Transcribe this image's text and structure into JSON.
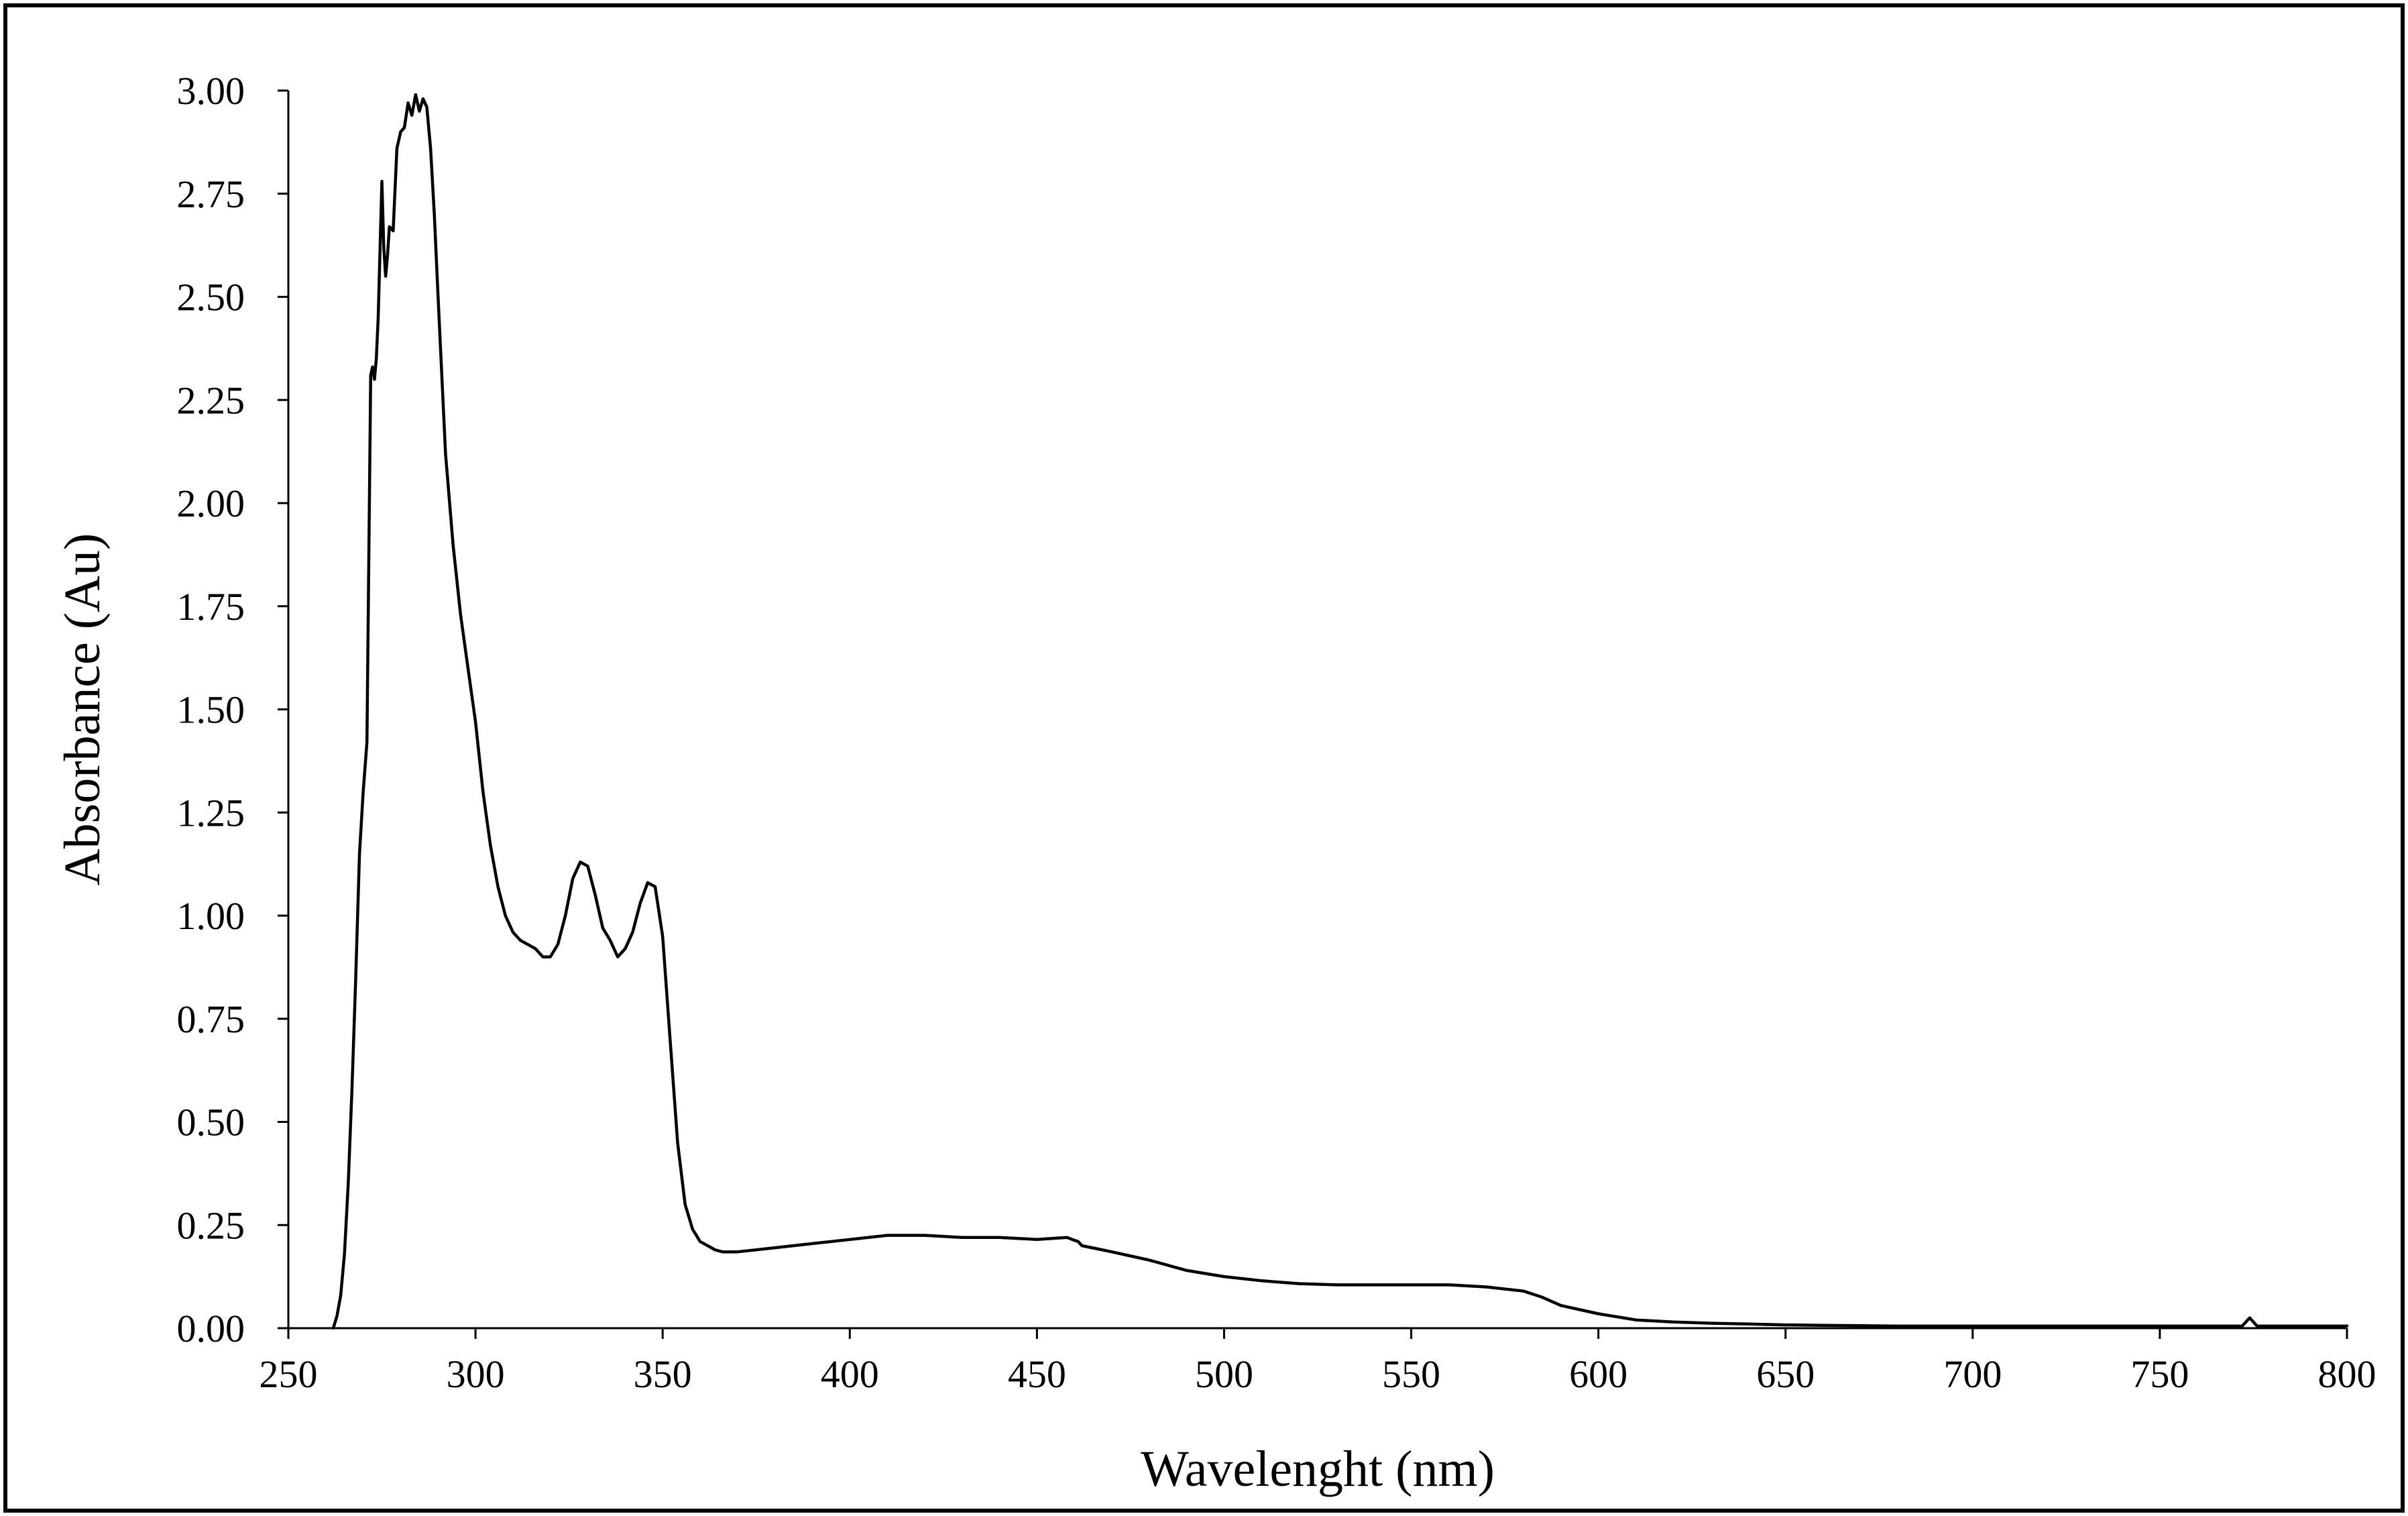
{
  "chart_data": {
    "type": "line",
    "title": "",
    "xlabel": "Wavelenght (nm)",
    "ylabel": "Absorbance (Au)",
    "xlim": [
      250,
      800
    ],
    "ylim": [
      0,
      3
    ],
    "x_ticks": [
      "250",
      "300",
      "350",
      "400",
      "450",
      "500",
      "550",
      "600",
      "650",
      "700",
      "750",
      "800"
    ],
    "y_ticks": [
      "0.00",
      "0.25",
      "0.50",
      "0.75",
      "1.00",
      "1.25",
      "1.50",
      "1.75",
      "2.00",
      "2.25",
      "2.50",
      "2.75",
      "3.00"
    ],
    "grid": false,
    "legend": "none",
    "line_color": "#000000",
    "series": [
      {
        "x": [
          262,
          263,
          264,
          265,
          266,
          267,
          268,
          269,
          270,
          271,
          272,
          272.5,
          273,
          273.5,
          274,
          275,
          275.5,
          276,
          276.5,
          277,
          278,
          279,
          280,
          281,
          282,
          283,
          284,
          285,
          286,
          287,
          288,
          289,
          290,
          292,
          294,
          296,
          298,
          300,
          302,
          304,
          306,
          308,
          310,
          312,
          314,
          316,
          318,
          320,
          322,
          324,
          326,
          328,
          330,
          332,
          334,
          336,
          338,
          340,
          342,
          344,
          346,
          348,
          350,
          352,
          354,
          356,
          358,
          360,
          362,
          364,
          366,
          368,
          370,
          375,
          380,
          390,
          400,
          410,
          420,
          430,
          440,
          450,
          458,
          460,
          461,
          462,
          470,
          480,
          490,
          500,
          510,
          520,
          530,
          540,
          550,
          560,
          570,
          580,
          585,
          590,
          600,
          610,
          620,
          630,
          640,
          650,
          660,
          670,
          680,
          700,
          720,
          740,
          760,
          772,
          774,
          776,
          780,
          800
        ],
        "values": [
          0.0,
          0.03,
          0.08,
          0.18,
          0.35,
          0.58,
          0.85,
          1.15,
          1.3,
          1.42,
          2.31,
          2.33,
          2.3,
          2.35,
          2.45,
          2.78,
          2.62,
          2.55,
          2.6,
          2.67,
          2.66,
          2.86,
          2.9,
          2.91,
          2.97,
          2.94,
          2.99,
          2.95,
          2.98,
          2.96,
          2.86,
          2.7,
          2.5,
          2.12,
          1.9,
          1.73,
          1.6,
          1.47,
          1.3,
          1.17,
          1.07,
          1.0,
          0.96,
          0.94,
          0.93,
          0.92,
          0.9,
          0.9,
          0.93,
          1.0,
          1.09,
          1.13,
          1.12,
          1.05,
          0.97,
          0.94,
          0.9,
          0.92,
          0.96,
          1.03,
          1.08,
          1.07,
          0.95,
          0.7,
          0.45,
          0.3,
          0.24,
          0.21,
          0.2,
          0.19,
          0.185,
          0.185,
          0.185,
          0.19,
          0.195,
          0.205,
          0.215,
          0.225,
          0.225,
          0.22,
          0.22,
          0.215,
          0.22,
          0.213,
          0.21,
          0.2,
          0.185,
          0.165,
          0.14,
          0.125,
          0.115,
          0.108,
          0.105,
          0.105,
          0.105,
          0.105,
          0.1,
          0.09,
          0.075,
          0.055,
          0.035,
          0.02,
          0.015,
          0.012,
          0.01,
          0.008,
          0.007,
          0.006,
          0.005,
          0.005,
          0.005,
          0.005,
          0.005,
          0.005,
          0.025,
          0.005,
          0.005,
          0.005
        ]
      }
    ]
  }
}
